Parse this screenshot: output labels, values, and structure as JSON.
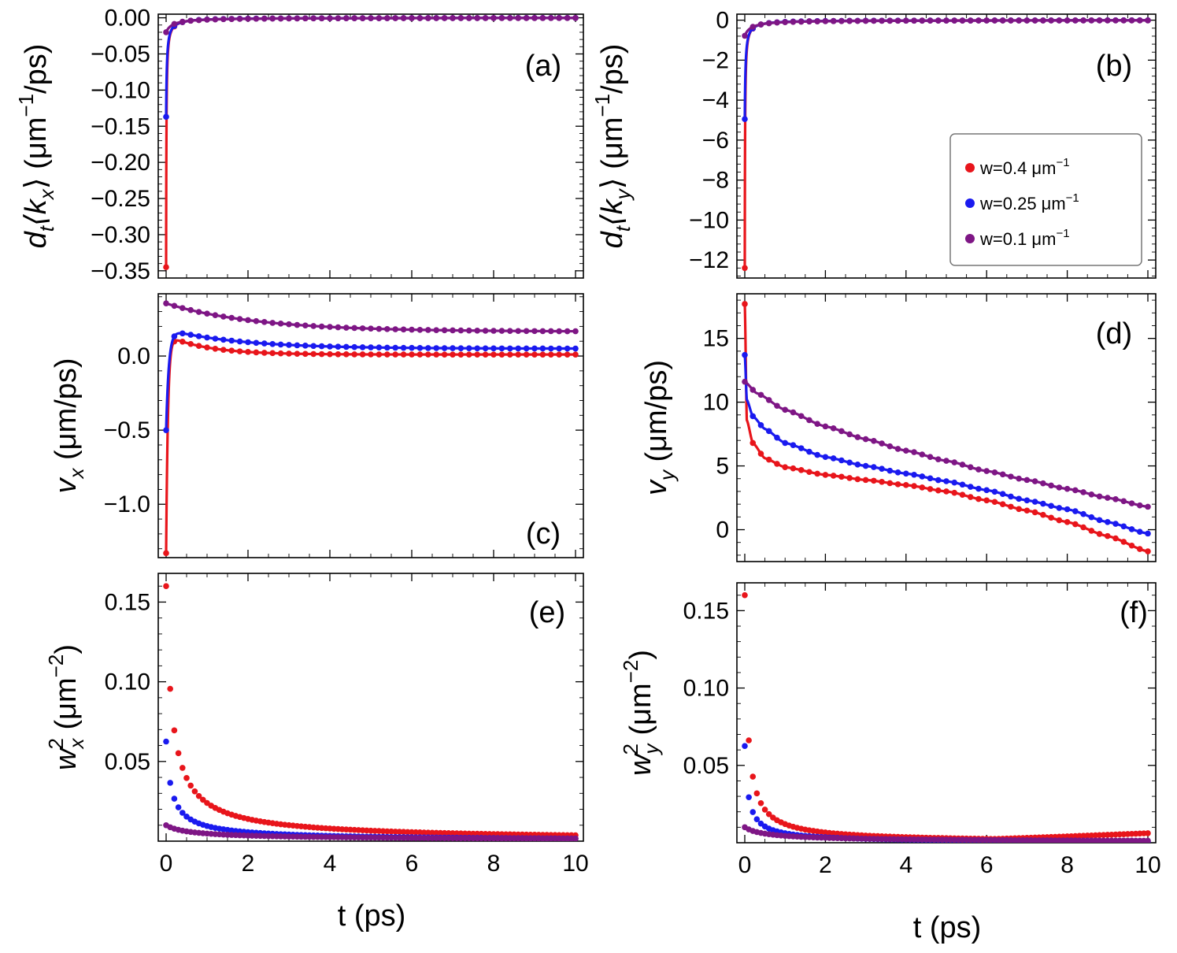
{
  "figure": {
    "xlabel_bottom": "t (ps)",
    "legend": {
      "entries": [
        {
          "series": "w=0.4",
          "label": "w=0.4 μm",
          "sup": "−1",
          "color": "#e8151b"
        },
        {
          "series": "w=0.25",
          "label": "w=0.25 μm",
          "sup": "−1",
          "color": "#1a1aef"
        },
        {
          "series": "w=0.1",
          "label": "w=0.1 μm",
          "sup": "−1",
          "color": "#7e1685"
        }
      ]
    }
  },
  "chart_data": [
    {
      "id": "a",
      "type": "line+scatter",
      "panel_label": "(a)",
      "ylabel": "d_t⟨k_x⟩ (μm^−1/ps)",
      "ylabel_parts": {
        "main": "d",
        "sub1": "t",
        "mid": "⟨k",
        "sub2": "x",
        "tail": "⟩ (μm",
        "sup": "−1",
        "end": "/ps)"
      },
      "xlim": [
        0,
        10
      ],
      "ylim": [
        -0.36,
        0.005
      ],
      "xticks": [
        0,
        2,
        4,
        6,
        8,
        10
      ],
      "xticklabels": [
        "0",
        "2",
        "4",
        "6",
        "8",
        "10"
      ],
      "show_xticklabels": false,
      "yticks": [
        -0.35,
        -0.3,
        -0.25,
        -0.2,
        -0.15,
        -0.1,
        -0.05,
        0.0
      ],
      "yticklabels": [
        "−0.35",
        "−0.30",
        "−0.25",
        "−0.20",
        "−0.15",
        "−0.10",
        "−0.05",
        "0.00"
      ],
      "series": [
        {
          "name": "w=0.4",
          "color": "#e8151b",
          "func": "pow",
          "a": -0.345,
          "b": 0.0072,
          "c": 0.0,
          "p": 1.0,
          "line": true
        },
        {
          "name": "w=0.25",
          "color": "#1a1aef",
          "func": "pow",
          "a": -0.137,
          "b": 0.018,
          "c": 0.0,
          "p": 1.0,
          "line": true
        },
        {
          "name": "w=0.1",
          "color": "#7e1685",
          "func": "pow",
          "a": -0.02,
          "b": 0.15,
          "c": 0.0,
          "p": 1.0,
          "line": true
        }
      ]
    },
    {
      "id": "b",
      "type": "line+scatter",
      "panel_label": "(b)",
      "ylabel": "d_t⟨k_y⟩ (μm^−1/ps)",
      "ylabel_parts": {
        "main": "d",
        "sub1": "t",
        "mid": "⟨k",
        "sub2": "y",
        "tail": "⟩ (μm",
        "sup": "−1",
        "end": "/ps)"
      },
      "xlim": [
        0,
        10
      ],
      "ylim": [
        -12.9,
        0.3
      ],
      "xticks": [
        0,
        2,
        4,
        6,
        8,
        10
      ],
      "xticklabels": [
        "0",
        "2",
        "4",
        "6",
        "8",
        "10"
      ],
      "show_xticklabels": false,
      "yticks": [
        -12,
        -10,
        -8,
        -6,
        -4,
        -2,
        0
      ],
      "yticklabels": [
        "−12",
        "−10",
        "−8",
        "−6",
        "−4",
        "−2",
        "0"
      ],
      "series": [
        {
          "name": "w=0.4",
          "color": "#e8151b",
          "func": "pow",
          "a": -12.4,
          "b": 0.007,
          "c": 0.0,
          "p": 1.0,
          "line": true
        },
        {
          "name": "w=0.25",
          "color": "#1a1aef",
          "func": "pow",
          "a": -4.95,
          "b": 0.018,
          "c": 0.0,
          "p": 1.0,
          "line": true
        },
        {
          "name": "w=0.1",
          "color": "#7e1685",
          "func": "pow",
          "a": -0.78,
          "b": 0.15,
          "c": 0.0,
          "p": 1.0,
          "line": true
        }
      ]
    },
    {
      "id": "c",
      "type": "line+scatter",
      "panel_label": "(c)",
      "ylabel": "v_x (μm/ps)",
      "ylabel_parts": {
        "main": "v",
        "sub1": "x",
        "tail": " (μm/ps)"
      },
      "xlim": [
        0,
        10
      ],
      "ylim": [
        -1.36,
        0.42
      ],
      "xticks": [
        0,
        2,
        4,
        6,
        8,
        10
      ],
      "xticklabels": [
        "0",
        "2",
        "4",
        "6",
        "8",
        "10"
      ],
      "show_xticklabels": false,
      "yticks": [
        -1.0,
        -0.5,
        0.0
      ],
      "yticklabels": [
        "−1.0",
        "−0.5",
        "0.0"
      ],
      "series": [
        {
          "name": "w=0.4",
          "color": "#e8151b",
          "func": "vx",
          "v0": -1.33,
          "vinf": 0.01,
          "A": 0.13,
          "k1": 22,
          "k2": 1.0,
          "line": true
        },
        {
          "name": "w=0.25",
          "color": "#1a1aef",
          "func": "vx",
          "v0": -0.5,
          "vinf": 0.05,
          "A": 0.13,
          "k1": 15,
          "k2": 0.55,
          "line": true
        },
        {
          "name": "w=0.1",
          "color": "#7e1685",
          "func": "vx",
          "v0": 0.355,
          "vinf": 0.165,
          "A": 0.19,
          "k1": 0,
          "k2": 0.45,
          "line": true
        }
      ]
    },
    {
      "id": "d",
      "type": "line+scatter",
      "panel_label": "(d)",
      "ylabel": "v_y (μm/ps)",
      "ylabel_parts": {
        "main": "v",
        "sub1": "y",
        "tail": " (μm/ps)"
      },
      "xlim": [
        0,
        10
      ],
      "ylim": [
        -2.5,
        18.5
      ],
      "xticks": [
        0,
        2,
        4,
        6,
        8,
        10
      ],
      "xticklabels": [
        "0",
        "2",
        "4",
        "6",
        "8",
        "10"
      ],
      "show_xticklabels": false,
      "yticks": [
        0,
        5,
        10,
        15
      ],
      "yticklabels": [
        "0",
        "5",
        "10",
        "15"
      ],
      "series": [
        {
          "name": "w=0.4",
          "color": "#e8151b",
          "func": "vy",
          "pts": [
            [
              0,
              17.7
            ],
            [
              0.05,
              8.6
            ],
            [
              0.2,
              6.8
            ],
            [
              0.5,
              5.6
            ],
            [
              1,
              4.9
            ],
            [
              2,
              4.3
            ],
            [
              3,
              3.9
            ],
            [
              4,
              3.5
            ],
            [
              5,
              3.0
            ],
            [
              6,
              2.3
            ],
            [
              7,
              1.5
            ],
            [
              8,
              0.6
            ],
            [
              9,
              -0.5
            ],
            [
              10,
              -1.7
            ]
          ],
          "line": true
        },
        {
          "name": "w=0.25",
          "color": "#1a1aef",
          "func": "vy",
          "pts": [
            [
              0,
              13.7
            ],
            [
              0.05,
              10.2
            ],
            [
              0.2,
              8.9
            ],
            [
              0.5,
              7.9
            ],
            [
              1,
              6.8
            ],
            [
              2,
              5.7
            ],
            [
              3,
              5.0
            ],
            [
              4,
              4.4
            ],
            [
              5,
              3.8
            ],
            [
              6,
              3.1
            ],
            [
              7,
              2.3
            ],
            [
              8,
              1.6
            ],
            [
              9,
              0.6
            ],
            [
              10,
              -0.3
            ]
          ],
          "line": true
        },
        {
          "name": "w=0.1",
          "color": "#7e1685",
          "func": "vy",
          "pts": [
            [
              0,
              11.6
            ],
            [
              0.3,
              10.7
            ],
            [
              1,
              9.4
            ],
            [
              2,
              8.1
            ],
            [
              3,
              7.1
            ],
            [
              4,
              6.2
            ],
            [
              5,
              5.4
            ],
            [
              6,
              4.6
            ],
            [
              7,
              3.9
            ],
            [
              8,
              3.2
            ],
            [
              9,
              2.5
            ],
            [
              10,
              1.8
            ]
          ],
          "line": true
        }
      ]
    },
    {
      "id": "e",
      "type": "scatter",
      "panel_label": "(e)",
      "ylabel": "w_x^2 (μm^−2)",
      "ylabel_parts": {
        "main": "w",
        "sub1": "x",
        "sup0": "2",
        "tail": " (μm",
        "sup": "−2",
        "end": ")"
      },
      "xlim": [
        0,
        10
      ],
      "ylim": [
        0,
        0.168
      ],
      "xticks": [
        0,
        2,
        4,
        6,
        8,
        10
      ],
      "xticklabels": [
        "0",
        "2",
        "4",
        "6",
        "8",
        "10"
      ],
      "show_xticklabels": true,
      "yticks": [
        0.05,
        0.1,
        0.15
      ],
      "yticklabels": [
        "0.05",
        "0.10",
        "0.15"
      ],
      "series": [
        {
          "name": "w=0.4",
          "color": "#e8151b",
          "func": "w2",
          "a": 0.16,
          "b": 0.12,
          "c": 0.0,
          "p": 0.85,
          "line": false
        },
        {
          "name": "w=0.25",
          "color": "#1a1aef",
          "func": "w2",
          "a": 0.0625,
          "b": 0.105,
          "c": 0.0,
          "p": 0.8,
          "line": false
        },
        {
          "name": "w=0.1",
          "color": "#7e1685",
          "func": "w2",
          "a": 0.01,
          "b": 0.35,
          "c": 0.0,
          "p": 0.55,
          "line": false
        }
      ]
    },
    {
      "id": "f",
      "type": "scatter",
      "panel_label": "(f)",
      "ylabel": "w_y^2 (μm^−2)",
      "ylabel_parts": {
        "main": "w",
        "sub1": "y",
        "sup0": "2",
        "tail": " (μm",
        "sup": "−2",
        "end": ")"
      },
      "xlim": [
        0,
        10
      ],
      "ylim": [
        0,
        0.168
      ],
      "xticks": [
        0,
        2,
        4,
        6,
        8,
        10
      ],
      "xticklabels": [
        "0",
        "2",
        "4",
        "6",
        "8",
        "10"
      ],
      "show_xticklabels": true,
      "yticks": [
        0.05,
        0.1,
        0.15
      ],
      "yticklabels": [
        "0.05",
        "0.10",
        "0.15"
      ],
      "series": [
        {
          "name": "w=0.4",
          "color": "#e8151b",
          "func": "wy2",
          "a": 0.16,
          "b": 0.06,
          "c": 0.0,
          "p": 0.9,
          "line": false
        },
        {
          "name": "w=0.25",
          "color": "#1a1aef",
          "func": "wy2",
          "a": 0.0625,
          "b": 0.07,
          "c": 0.0,
          "p": 0.85,
          "line": false
        },
        {
          "name": "w=0.1",
          "color": "#7e1685",
          "func": "wy2",
          "a": 0.01,
          "b": 0.35,
          "c": 0.0,
          "p": 0.6,
          "line": false
        }
      ]
    }
  ]
}
